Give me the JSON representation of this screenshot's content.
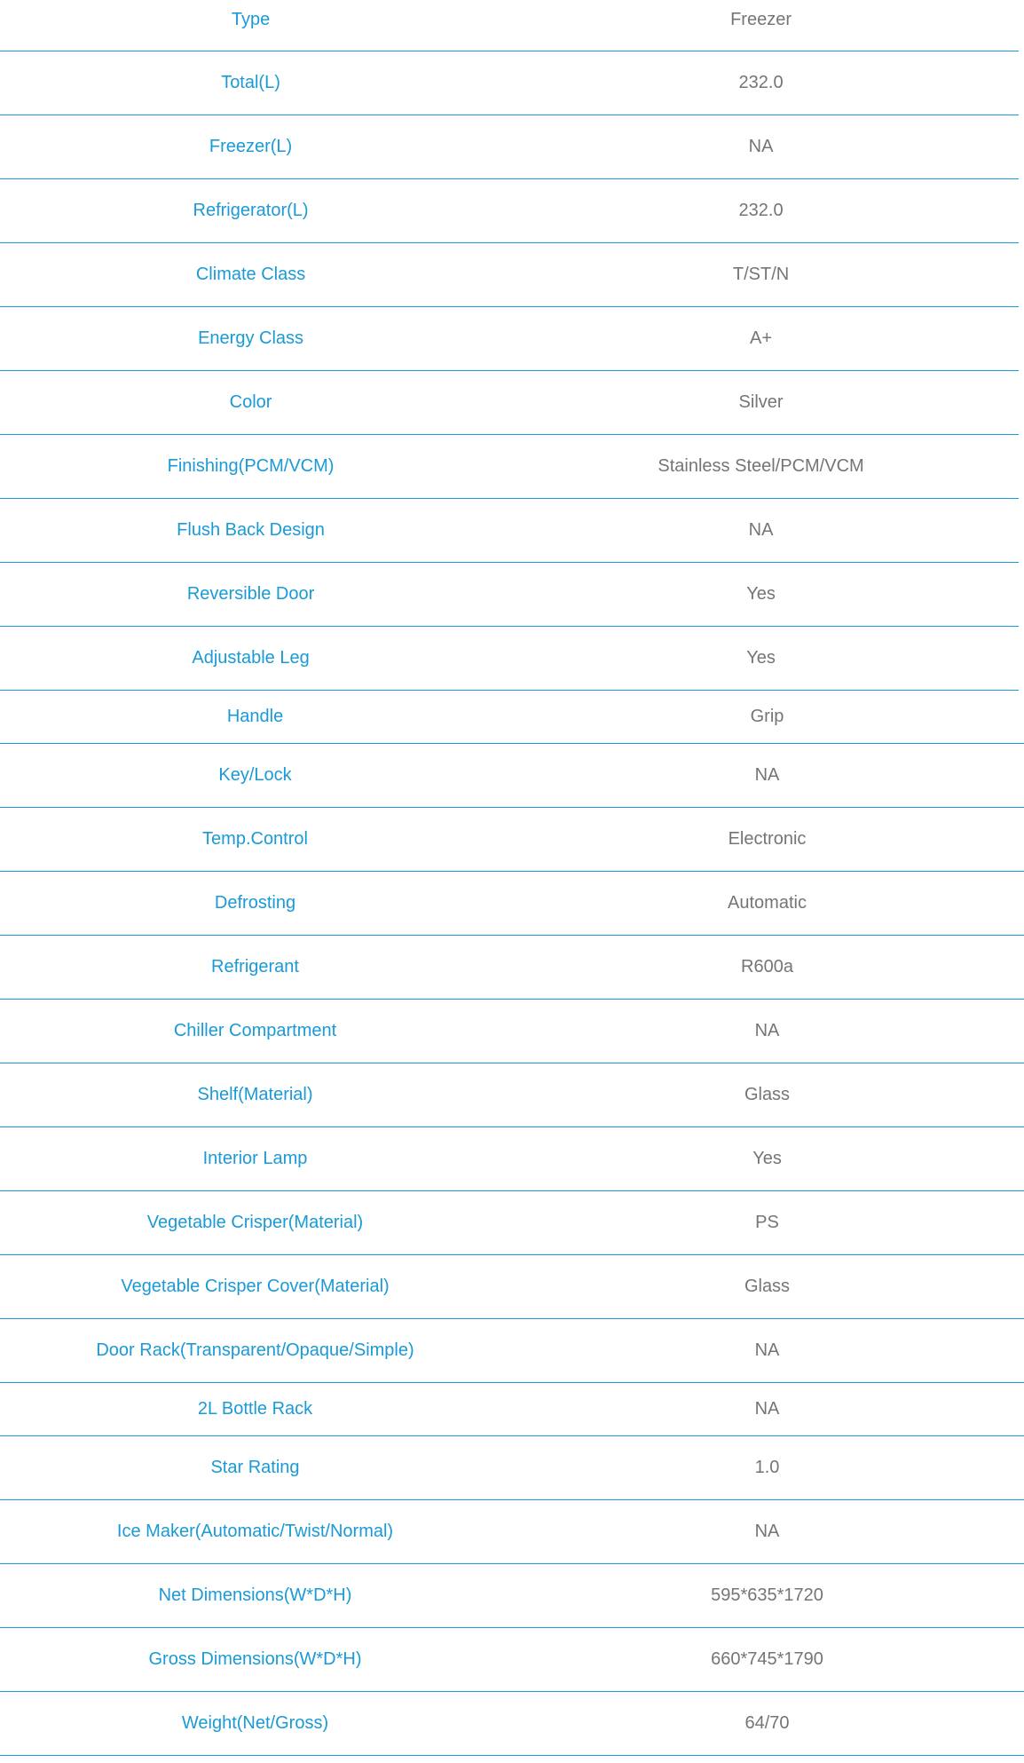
{
  "colors": {
    "label": "#1a9ad6",
    "value": "#757575",
    "divider": "#1a9ad6"
  },
  "specs": [
    {
      "label": "Type",
      "value": "Freezer"
    },
    {
      "label": "Total(L)",
      "value": "232.0"
    },
    {
      "label": "Freezer(L)",
      "value": "NA"
    },
    {
      "label": "Refrigerator(L)",
      "value": "232.0"
    },
    {
      "label": "Climate Class",
      "value": "T/ST/N"
    },
    {
      "label": "Energy Class",
      "value": "A+"
    },
    {
      "label": "Color",
      "value": "Silver"
    },
    {
      "label": "Finishing(PCM/VCM)",
      "value": "Stainless Steel/PCM/VCM"
    },
    {
      "label": "Flush Back Design",
      "value": "NA"
    },
    {
      "label": "Reversible Door",
      "value": "Yes"
    },
    {
      "label": "Adjustable Leg",
      "value": "Yes"
    },
    {
      "label": "Handle",
      "value": "Grip"
    },
    {
      "label": "Key/Lock",
      "value": "NA"
    },
    {
      "label": "Temp.Control",
      "value": "Electronic"
    },
    {
      "label": "Defrosting",
      "value": "Automatic"
    },
    {
      "label": "Refrigerant",
      "value": "R600a"
    },
    {
      "label": "Chiller Compartment",
      "value": "NA"
    },
    {
      "label": "Shelf(Material)",
      "value": "Glass"
    },
    {
      "label": "Interior Lamp",
      "value": "Yes"
    },
    {
      "label": "Vegetable Crisper(Material)",
      "value": "PS"
    },
    {
      "label": "Vegetable Crisper Cover(Material)",
      "value": "Glass"
    },
    {
      "label": "Door Rack(Transparent/Opaque/Simple)",
      "value": "NA"
    },
    {
      "label": "2L Bottle Rack",
      "value": "NA"
    },
    {
      "label": "Star Rating",
      "value": "1.0"
    },
    {
      "label": "Ice Maker(Automatic/Twist/Normal)",
      "value": "NA"
    },
    {
      "label": "Net Dimensions(W*D*H)",
      "value": "595*635*1720"
    },
    {
      "label": "Gross Dimensions(W*D*H)",
      "value": "660*745*1790"
    },
    {
      "label": "Weight(Net/Gross)",
      "value": "64/70"
    }
  ]
}
